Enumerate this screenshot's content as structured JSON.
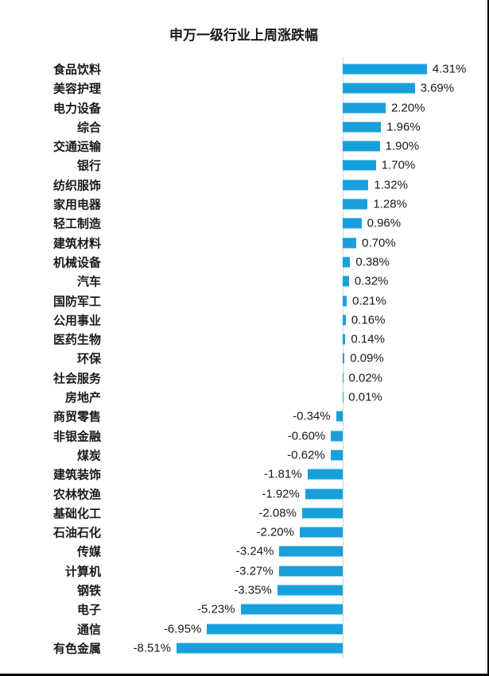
{
  "chart_data": {
    "type": "bar",
    "orientation": "horizontal",
    "title": "申万一级行业上周涨跌幅",
    "xlabel": "",
    "ylabel": "",
    "xlim": [
      -10,
      5
    ],
    "grid": false,
    "legend": "none",
    "bar_color": "#18A0DC",
    "axis_line_color": "#d4d4d4",
    "text_color": "#1a1a1a",
    "categories": [
      "食品饮料",
      "美容护理",
      "电力设备",
      "综合",
      "交通运输",
      "银行",
      "纺织服饰",
      "家用电器",
      "轻工制造",
      "建筑材料",
      "机械设备",
      "汽车",
      "国防军工",
      "公用事业",
      "医药生物",
      "环保",
      "社会服务",
      "房地产",
      "商贸零售",
      "非银金融",
      "煤炭",
      "建筑装饰",
      "农林牧渔",
      "基础化工",
      "石油石化",
      "传媒",
      "计算机",
      "钢铁",
      "电子",
      "通信",
      "有色金属"
    ],
    "values": [
      4.31,
      3.69,
      2.2,
      1.96,
      1.9,
      1.7,
      1.32,
      1.28,
      0.96,
      0.7,
      0.38,
      0.32,
      0.21,
      0.16,
      0.14,
      0.09,
      0.02,
      0.01,
      -0.34,
      -0.6,
      -0.62,
      -1.81,
      -1.92,
      -2.08,
      -2.2,
      -3.24,
      -3.27,
      -3.35,
      -5.23,
      -6.95,
      -8.51
    ],
    "value_labels": [
      "4.31%",
      "3.69%",
      "2.20%",
      "1.96%",
      "1.90%",
      "1.70%",
      "1.32%",
      "1.28%",
      "0.96%",
      "0.70%",
      "0.38%",
      "0.32%",
      "0.21%",
      "0.16%",
      "0.14%",
      "0.09%",
      "0.02%",
      "0.01%",
      "-0.34%",
      "-0.60%",
      "-0.62%",
      "-1.81%",
      "-1.92%",
      "-2.08%",
      "-2.20%",
      "-3.24%",
      "-3.27%",
      "-3.35%",
      "-5.23%",
      "-6.95%",
      "-8.51%"
    ]
  }
}
